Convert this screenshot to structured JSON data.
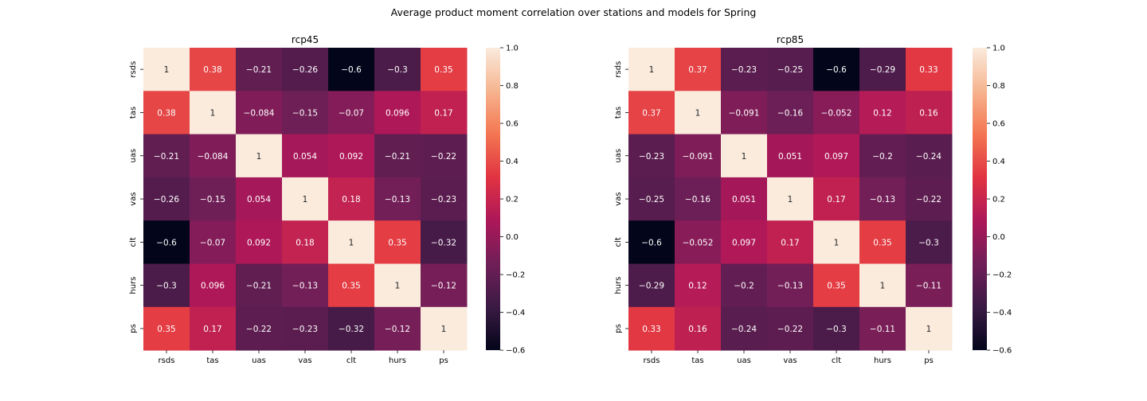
{
  "figure": {
    "title": "Average product moment correlation over stations and models for Spring"
  },
  "colormap": {
    "name": "rocket",
    "stops": [
      "#03051a",
      "#3a1a43",
      "#701f57",
      "#ad1759",
      "#e13342",
      "#f37651",
      "#f6b48f",
      "#faebdd"
    ]
  },
  "chart_data": [
    {
      "type": "heatmap",
      "title": "rcp45",
      "xlabel": "",
      "ylabel": "",
      "x_categories": [
        "rsds",
        "tas",
        "uas",
        "vas",
        "clt",
        "hurs",
        "ps"
      ],
      "y_categories": [
        "rsds",
        "tas",
        "uas",
        "vas",
        "clt",
        "hurs",
        "ps"
      ],
      "values": [
        [
          1,
          0.38,
          -0.21,
          -0.26,
          -0.6,
          -0.3,
          0.35
        ],
        [
          0.38,
          1,
          -0.084,
          -0.15,
          -0.07,
          0.096,
          0.17
        ],
        [
          -0.21,
          -0.084,
          1,
          0.054,
          0.092,
          -0.21,
          -0.22
        ],
        [
          -0.26,
          -0.15,
          0.054,
          1,
          0.18,
          -0.13,
          -0.23
        ],
        [
          -0.6,
          -0.07,
          0.092,
          0.18,
          1,
          0.35,
          -0.32
        ],
        [
          -0.3,
          0.096,
          -0.21,
          -0.13,
          0.35,
          1,
          -0.12
        ],
        [
          0.35,
          0.17,
          -0.22,
          -0.23,
          -0.32,
          -0.12,
          1
        ]
      ],
      "colorbar": {
        "range": [
          -0.6,
          1.0
        ],
        "ticks": [
          -0.6,
          -0.4,
          -0.2,
          0.0,
          0.2,
          0.4,
          0.6,
          0.8,
          1.0
        ],
        "tick_labels": [
          "−0.6",
          "−0.4",
          "−0.2",
          "0.0",
          "0.2",
          "0.4",
          "0.6",
          "0.8",
          "1.0"
        ]
      }
    },
    {
      "type": "heatmap",
      "title": "rcp85",
      "xlabel": "",
      "ylabel": "",
      "x_categories": [
        "rsds",
        "tas",
        "uas",
        "vas",
        "clt",
        "hurs",
        "ps"
      ],
      "y_categories": [
        "rsds",
        "tas",
        "uas",
        "vas",
        "clt",
        "hurs",
        "ps"
      ],
      "values": [
        [
          1,
          0.37,
          -0.23,
          -0.25,
          -0.6,
          -0.29,
          0.33
        ],
        [
          0.37,
          1,
          -0.091,
          -0.16,
          -0.052,
          0.12,
          0.16
        ],
        [
          -0.23,
          -0.091,
          1,
          0.051,
          0.097,
          -0.2,
          -0.24
        ],
        [
          -0.25,
          -0.16,
          0.051,
          1,
          0.17,
          -0.13,
          -0.22
        ],
        [
          -0.6,
          -0.052,
          0.097,
          0.17,
          1,
          0.35,
          -0.3
        ],
        [
          -0.29,
          0.12,
          -0.2,
          -0.13,
          0.35,
          1,
          -0.11
        ],
        [
          0.33,
          0.16,
          -0.24,
          -0.22,
          -0.3,
          -0.11,
          1
        ]
      ],
      "colorbar": {
        "range": [
          -0.6,
          1.0
        ],
        "ticks": [
          -0.6,
          -0.4,
          -0.2,
          0.0,
          0.2,
          0.4,
          0.6,
          0.8,
          1.0
        ],
        "tick_labels": [
          "−0.6",
          "−0.4",
          "−0.2",
          "0.0",
          "0.2",
          "0.4",
          "0.6",
          "0.8",
          "1.0"
        ]
      }
    }
  ]
}
